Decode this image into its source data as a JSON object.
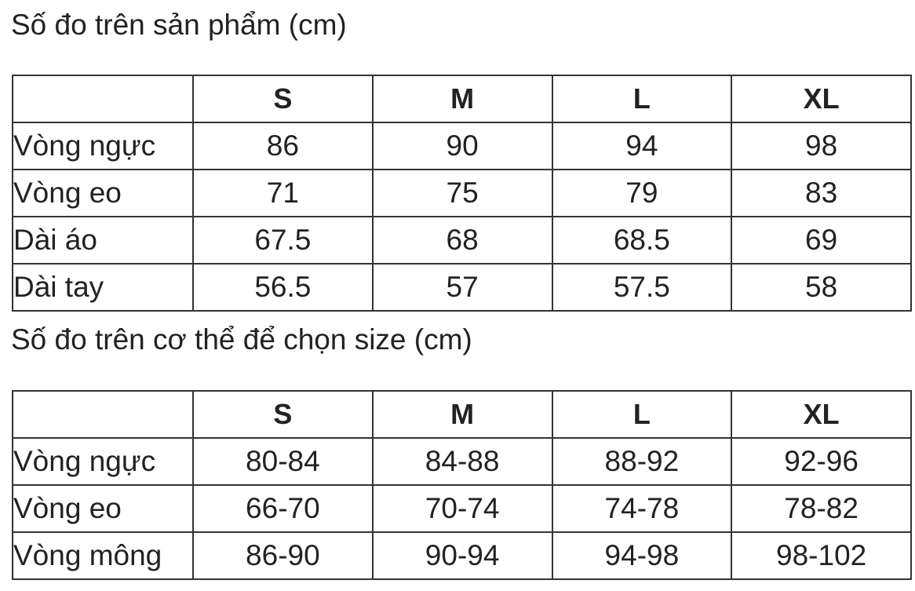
{
  "product_measurements": {
    "title": "Số đo trên sản phẩm (cm)",
    "headers": [
      "",
      "S",
      "M",
      "L",
      "XL"
    ],
    "rows": [
      {
        "label": "Vòng ngực",
        "values": [
          "86",
          "90",
          "94",
          "98"
        ]
      },
      {
        "label": "Vòng eo",
        "values": [
          "71",
          "75",
          "79",
          "83"
        ]
      },
      {
        "label": "Dài áo",
        "values": [
          "67.5",
          "68",
          "68.5",
          "69"
        ]
      },
      {
        "label": "Dài tay",
        "values": [
          "56.5",
          "57",
          "57.5",
          "58"
        ]
      }
    ]
  },
  "body_measurements": {
    "title": "Số đo trên cơ thể để chọn size (cm)",
    "headers": [
      "",
      "S",
      "M",
      "L",
      "XL"
    ],
    "rows": [
      {
        "label": "Vòng ngực",
        "values": [
          "80-84",
          "84-88",
          "88-92",
          "92-96"
        ]
      },
      {
        "label": "Vòng eo",
        "values": [
          "66-70",
          "70-74",
          "74-78",
          "78-82"
        ]
      },
      {
        "label": "Vòng mông",
        "values": [
          "86-90",
          "90-94",
          "94-98",
          "98-102"
        ]
      }
    ]
  }
}
